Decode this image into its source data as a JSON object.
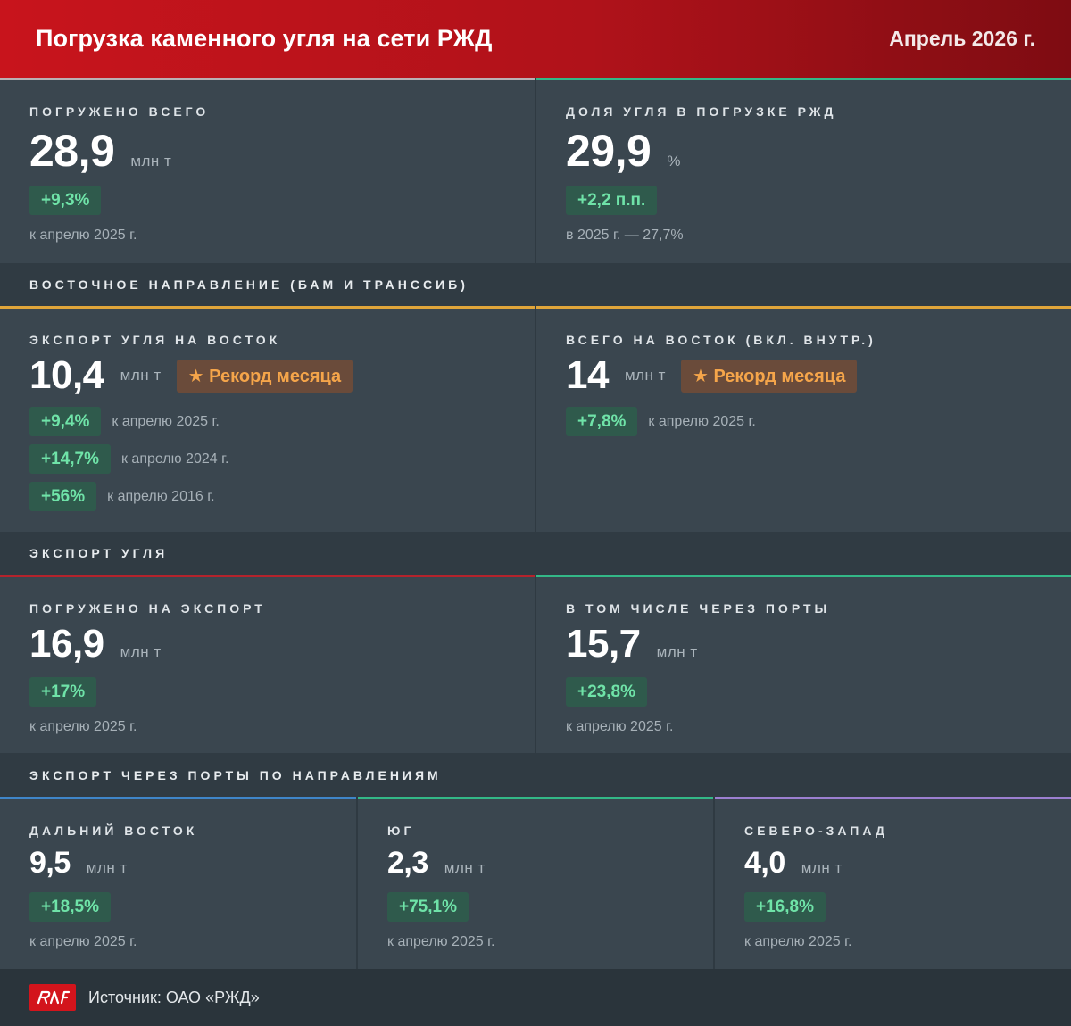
{
  "header": {
    "title": "Погрузка каменного угля на сети РЖД",
    "period": "Апрель 2026 г."
  },
  "top": {
    "loaded_total": {
      "label": "ПОГРУЖЕНО ВСЕГО",
      "value": "28,9",
      "unit": "млн т",
      "change": "+9,3%",
      "note": "к апрелю 2025 г."
    },
    "share": {
      "label": "ДОЛЯ УГЛЯ В ПОГРУЗКЕ РЖД",
      "value": "29,9",
      "unit": "%",
      "change": "+2,2 п.п.",
      "note": "в 2025 г. — 27,7%"
    }
  },
  "east": {
    "section_title": "ВОСТОЧНОЕ НАПРАВЛЕНИЕ (БАМ И ТРАНССИБ)",
    "export_east": {
      "label": "ЭКСПОРТ УГЛЯ НА ВОСТОК",
      "value": "10,4",
      "unit": "млн т",
      "record": "★ Рекорд месяца",
      "comparisons": [
        {
          "change": "+9,4%",
          "note": "к апрелю 2025 г."
        },
        {
          "change": "+14,7%",
          "note": "к апрелю 2024 г."
        },
        {
          "change": "+56%",
          "note": "к апрелю 2016 г."
        }
      ]
    },
    "total_east": {
      "label": "ВСЕГО НА ВОСТОК (ВКЛ. ВНУТР.)",
      "value": "14",
      "unit": "млн т",
      "record": "★ Рекорд месяца",
      "change": "+7,8%",
      "note": "к апрелю 2025 г."
    }
  },
  "export": {
    "section_title": "ЭКСПОРТ УГЛЯ",
    "loaded_export": {
      "label": "ПОГРУЖЕНО НА ЭКСПОРТ",
      "value": "16,9",
      "unit": "млн т",
      "change": "+17%",
      "note": "к апрелю 2025 г."
    },
    "via_ports": {
      "label": "В ТОМ ЧИСЛЕ ЧЕРЕЗ ПОРТЫ",
      "value": "15,7",
      "unit": "млн т",
      "change": "+23,8%",
      "note": "к апрелю 2025 г."
    }
  },
  "ports": {
    "section_title": "ЭКСПОРТ ЧЕРЕЗ ПОРТЫ ПО НАПРАВЛЕНИЯМ",
    "far_east": {
      "label": "ДАЛЬНИЙ ВОСТОК",
      "value": "9,5",
      "unit": "млн т",
      "change": "+18,5%",
      "note": "к апрелю 2025 г."
    },
    "south": {
      "label": "ЮГ",
      "value": "2,3",
      "unit": "млн т",
      "change": "+75,1%",
      "note": "к апрелю 2025 г."
    },
    "north_west": {
      "label": "СЕВЕРО-ЗАПАД",
      "value": "4,0",
      "unit": "млн т",
      "change": "+16,8%",
      "note": "к апрелю 2025 г."
    }
  },
  "footer": {
    "logo": "rzd-logo",
    "source": "Источник: ОАО «РЖД»"
  },
  "colors": {
    "header_red": "#c8141c",
    "positive_green": "#6fe3a8",
    "record_orange": "#f5a54a",
    "accent_gray": "#b9b0b4",
    "accent_green": "#33b887",
    "accent_orange": "#e0a53a",
    "accent_red": "#b5232c",
    "accent_blue": "#3f86c9",
    "accent_purple": "#9b7fd0"
  }
}
